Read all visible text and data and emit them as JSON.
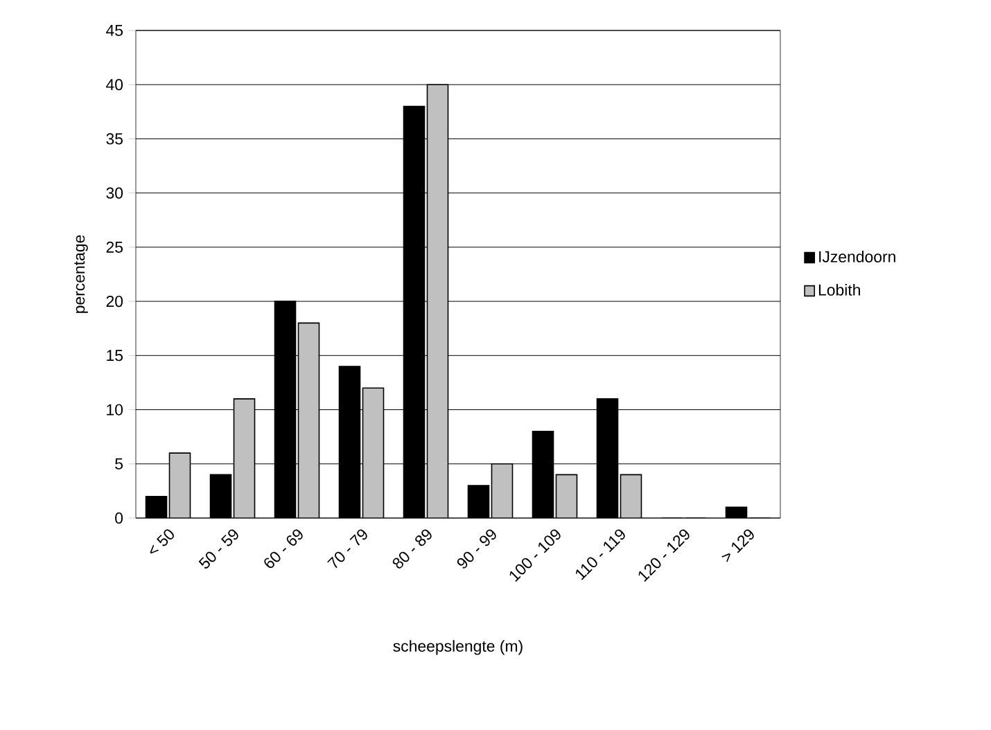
{
  "chart_data": {
    "type": "bar",
    "xlabel": "scheepslengte (m)",
    "ylabel": "percentage",
    "categories": [
      "< 50",
      "50 - 59",
      "60 - 69",
      "70 - 79",
      "80 - 89",
      "90 - 99",
      "100 - 109",
      "110 - 119",
      "120 - 129",
      "> 129"
    ],
    "series": [
      {
        "name": "IJzendoorn",
        "color": "#000000",
        "values": [
          2,
          4,
          20,
          14,
          38,
          3,
          8,
          11,
          0,
          1
        ]
      },
      {
        "name": "Lobith",
        "color": "#c0c0c0",
        "values": [
          6,
          11,
          18,
          12,
          40,
          5,
          4,
          4,
          0,
          0
        ]
      }
    ],
    "ylim": [
      0,
      45
    ],
    "yticks": [
      0,
      5,
      10,
      15,
      20,
      25,
      30,
      35,
      40,
      45
    ],
    "grid": "y",
    "legend": "right"
  }
}
